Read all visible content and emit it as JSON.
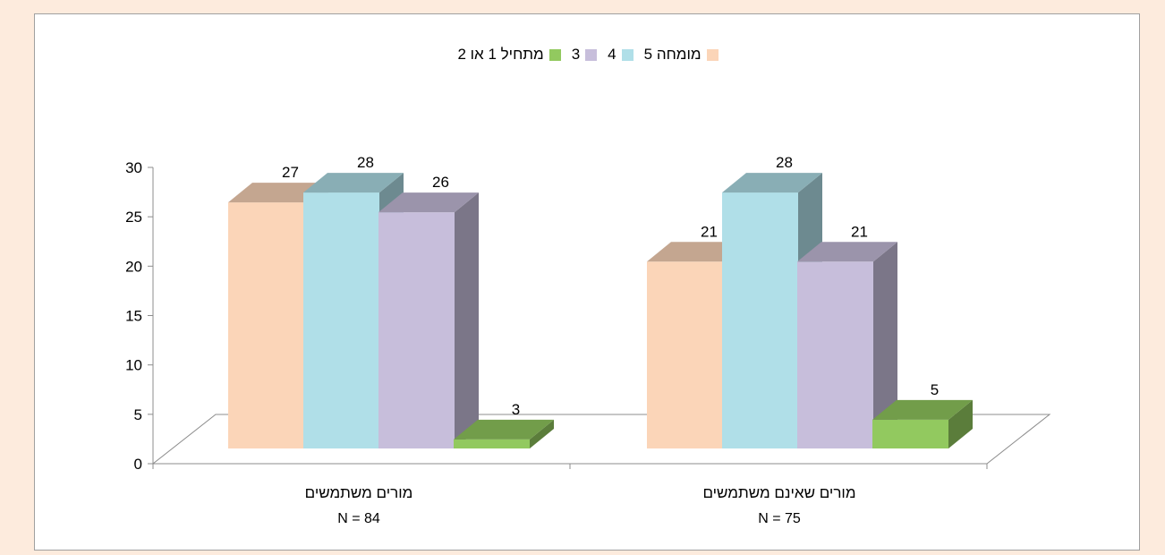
{
  "chart_data": {
    "type": "bar",
    "categories": [
      "מורים משתמשים",
      "מורים שאינם משתמשים"
    ],
    "category_sublabels": [
      "N = 84",
      "N = 75"
    ],
    "series": [
      {
        "name": "מומחה 5",
        "values": [
          27,
          21
        ],
        "color": "#fbd5b8"
      },
      {
        "name": "4",
        "values": [
          28,
          28
        ],
        "color": "#b0dfe8"
      },
      {
        "name": "3",
        "values": [
          26,
          21
        ],
        "color": "#c7bedb"
      },
      {
        "name": "מתחיל 1 או 2",
        "values": [
          3,
          5
        ],
        "color": "#92c95f"
      }
    ],
    "ylim": [
      0,
      30
    ],
    "yticks": [
      0,
      5,
      10,
      15,
      20,
      25,
      30
    ],
    "legend_position": "top",
    "grid": false,
    "style": "3d-clustered-column"
  }
}
